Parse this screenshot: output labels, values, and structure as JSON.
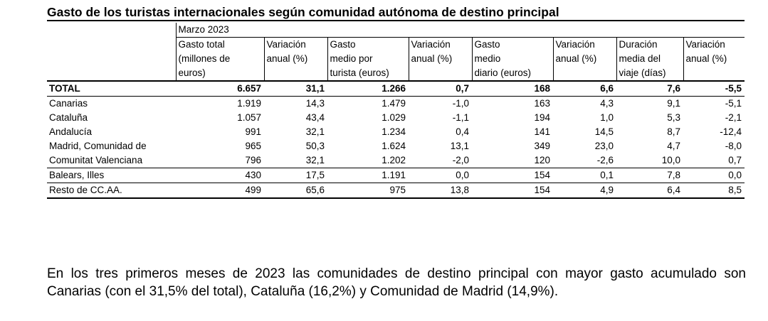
{
  "title": "Gasto de los turistas internacionales según comunidad autónoma de destino principal",
  "period": "Marzo 2023",
  "headers": {
    "c1": [
      "Gasto total",
      "(millones de",
      "euros)"
    ],
    "c2": [
      "Variación",
      "anual (%)",
      ""
    ],
    "c3": [
      "Gasto",
      "medio por",
      "turista (euros)"
    ],
    "c4": [
      "Variación",
      "anual (%)",
      ""
    ],
    "c5": [
      "Gasto",
      "medio",
      "diario (euros)"
    ],
    "c6": [
      "Variación",
      "anual (%)",
      ""
    ],
    "c7": [
      "Duración",
      "media del",
      "viaje (días)"
    ],
    "c8": [
      "Variación",
      "anual (%)",
      ""
    ]
  },
  "rows": [
    {
      "name": "TOTAL",
      "v": [
        "6.657",
        "31,1",
        "1.266",
        "0,7",
        "168",
        "6,6",
        "7,6",
        "-5,5"
      ]
    },
    {
      "name": "Canarias",
      "v": [
        "1.919",
        "14,3",
        "1.479",
        "-1,0",
        "163",
        "4,3",
        "9,1",
        "-5,1"
      ]
    },
    {
      "name": "Cataluña",
      "v": [
        "1.057",
        "43,4",
        "1.029",
        "-1,1",
        "194",
        "1,0",
        "5,3",
        "-2,1"
      ]
    },
    {
      "name": "Andalucía",
      "v": [
        "991",
        "32,1",
        "1.234",
        "0,4",
        "141",
        "14,5",
        "8,7",
        "-12,4"
      ]
    },
    {
      "name": "Madrid, Comunidad de",
      "v": [
        "965",
        "50,3",
        "1.624",
        "13,1",
        "349",
        "23,0",
        "4,7",
        "-8,0"
      ]
    },
    {
      "name": "Comunitat Valenciana",
      "v": [
        "796",
        "32,1",
        "1.202",
        "-2,0",
        "120",
        "-2,6",
        "10,0",
        "0,7"
      ]
    },
    {
      "name": "Balears, Illes",
      "v": [
        "430",
        "17,5",
        "1.191",
        "0,0",
        "154",
        "0,1",
        "7,8",
        "0,0"
      ]
    },
    {
      "name": "Resto de CC.AA.",
      "v": [
        "499",
        "65,6",
        "975",
        "13,8",
        "154",
        "4,9",
        "6,4",
        "8,5"
      ]
    }
  ],
  "paragraph": "En los tres primeros meses de 2023 las comunidades de destino principal con mayor gasto acumulado son Canarias (con el 31,5% del total), Cataluña (16,2%) y Comunidad de Madrid (14,9%)."
}
